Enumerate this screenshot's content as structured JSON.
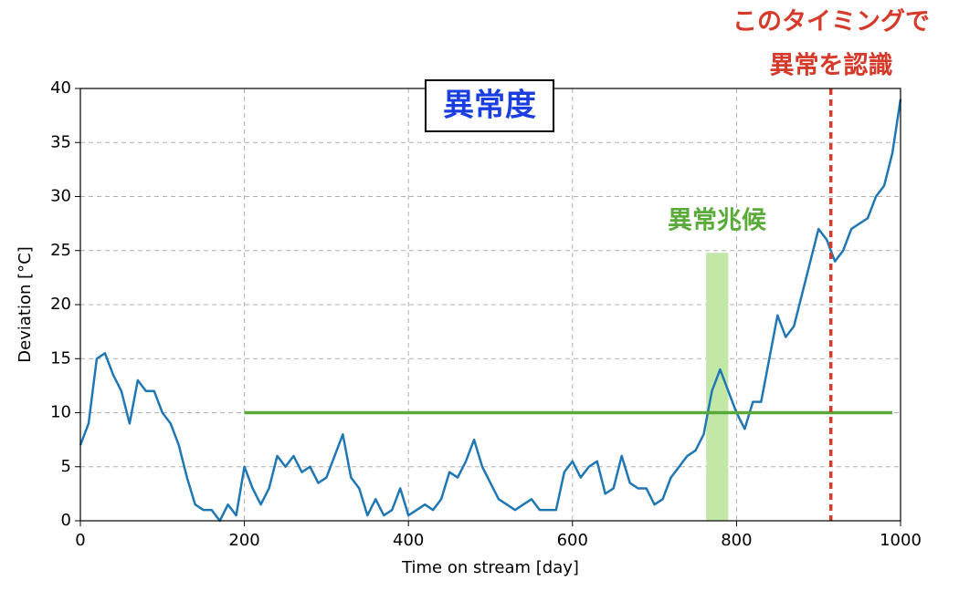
{
  "chart_data": {
    "type": "line",
    "title": "異常度",
    "xlabel": "Time on stream [day]",
    "ylabel": "Deviation [°C]",
    "x": [
      0,
      10,
      20,
      30,
      40,
      50,
      60,
      70,
      80,
      90,
      100,
      110,
      120,
      130,
      140,
      150,
      160,
      170,
      180,
      190,
      200,
      210,
      220,
      230,
      240,
      250,
      260,
      270,
      280,
      290,
      300,
      310,
      320,
      330,
      340,
      350,
      360,
      370,
      380,
      390,
      400,
      410,
      420,
      430,
      440,
      450,
      460,
      470,
      480,
      490,
      500,
      510,
      520,
      530,
      540,
      550,
      560,
      570,
      580,
      590,
      600,
      610,
      620,
      630,
      640,
      650,
      660,
      670,
      680,
      690,
      700,
      710,
      720,
      730,
      740,
      750,
      760,
      770,
      780,
      790,
      800,
      810,
      820,
      830,
      840,
      850,
      860,
      870,
      880,
      890,
      900,
      910,
      920,
      930,
      940,
      950,
      960,
      970,
      980,
      990,
      1000
    ],
    "values": [
      7,
      9,
      15,
      15.5,
      13.5,
      12,
      9,
      13,
      12,
      12,
      10,
      9,
      7,
      4,
      1.5,
      1,
      1,
      0,
      1.5,
      0.5,
      5,
      3,
      1.5,
      3,
      6,
      5,
      6,
      4.5,
      5,
      3.5,
      4,
      6,
      8,
      4,
      3,
      0.5,
      2,
      0.5,
      1,
      3,
      0.5,
      1,
      1.5,
      1,
      2,
      4.5,
      4,
      5.5,
      7.5,
      5,
      3.5,
      2,
      1.5,
      1,
      1.5,
      2,
      1,
      1,
      1,
      4.5,
      5.5,
      4,
      5,
      5.5,
      2.5,
      3,
      6,
      3.5,
      3,
      3,
      1.5,
      2,
      4,
      5,
      6,
      6.5,
      8,
      12,
      14,
      12,
      10,
      8.5,
      11,
      11,
      15,
      19,
      17,
      18,
      21,
      24,
      27,
      26,
      24,
      25,
      27,
      27.5,
      28,
      30,
      31,
      34,
      39
    ],
    "color": "#1f77b4",
    "xlim": [
      0,
      1000
    ],
    "ylim": [
      0,
      40
    ],
    "xticks": [
      0,
      200,
      400,
      600,
      800,
      1000
    ],
    "yticks": [
      0,
      5,
      10,
      15,
      20,
      25,
      30,
      35,
      40
    ],
    "grid": true,
    "threshold": {
      "value": 10,
      "start": 200,
      "end": 990,
      "color": "#58a83a"
    },
    "span": {
      "x": [
        763,
        790
      ],
      "top": 24.8,
      "color": "#c2e8a8",
      "label": "異常兆候",
      "label_color": "#5aab3a"
    },
    "vline": {
      "x": 915,
      "color": "#d63a2b",
      "label": [
        "このタイミングで",
        "異常を認識"
      ]
    }
  }
}
